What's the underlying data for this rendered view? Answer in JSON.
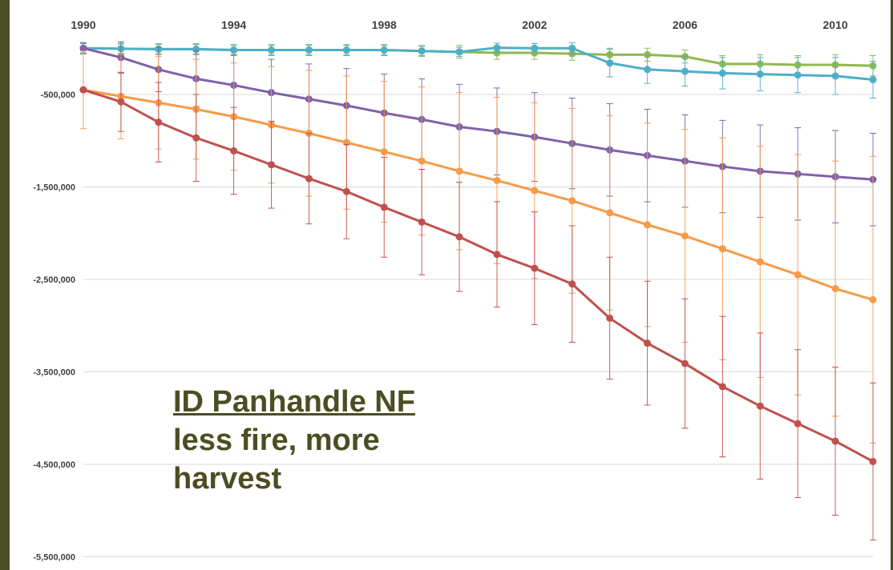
{
  "chart_data": {
    "type": "line",
    "x": [
      1990,
      1991,
      1992,
      1993,
      1994,
      1995,
      1996,
      1997,
      1998,
      1999,
      2000,
      2001,
      2002,
      2003,
      2004,
      2005,
      2006,
      2007,
      2008,
      2009,
      2010,
      2011
    ],
    "xticks": [
      1990,
      1994,
      1998,
      2002,
      2006,
      2010
    ],
    "yticks": [
      -500000,
      -1500000,
      -2500000,
      -3500000,
      -4500000,
      -5500000
    ],
    "ytick_labels": [
      "-500,000",
      "-1,500,000",
      "-2,500,000",
      "-3,500,000",
      "-4,500,000",
      "-5,500,000"
    ],
    "ylim": [
      -5600000,
      80000
    ],
    "xlim": [
      1990,
      2011
    ],
    "grid": "horizontal",
    "x_axis_position": "top",
    "series": [
      {
        "color": "#8dba4f",
        "values": [
          0,
          -5000,
          -10000,
          -10000,
          -20000,
          -20000,
          -20000,
          -20000,
          -20000,
          -30000,
          -40000,
          -50000,
          -50000,
          -60000,
          -70000,
          -70000,
          -90000,
          -170000,
          -170000,
          -180000,
          -180000,
          -190000
        ],
        "errors": [
          60000,
          60000,
          60000,
          60000,
          60000,
          60000,
          60000,
          60000,
          60000,
          60000,
          70000,
          70000,
          70000,
          70000,
          70000,
          70000,
          70000,
          90000,
          100000,
          100000,
          110000,
          110000
        ]
      },
      {
        "color": "#4eafc6",
        "values": [
          0,
          -5000,
          -10000,
          -10000,
          -20000,
          -20000,
          -20000,
          -20000,
          -20000,
          -30000,
          -40000,
          5000,
          0,
          0,
          -160000,
          -230000,
          -250000,
          -270000,
          -280000,
          -290000,
          -300000,
          -340000
        ],
        "errors": [
          50000,
          50000,
          50000,
          50000,
          50000,
          50000,
          50000,
          50000,
          50000,
          50000,
          50000,
          50000,
          50000,
          60000,
          150000,
          150000,
          160000,
          170000,
          180000,
          190000,
          200000,
          200000
        ]
      },
      {
        "color": "#8062a7",
        "values": [
          0,
          -100000,
          -230000,
          -330000,
          -400000,
          -480000,
          -550000,
          -620000,
          -700000,
          -770000,
          -850000,
          -900000,
          -960000,
          -1030000,
          -1100000,
          -1160000,
          -1220000,
          -1280000,
          -1330000,
          -1360000,
          -1390000,
          -1420000
        ],
        "errors": [
          60000,
          170000,
          240000,
          300000,
          330000,
          360000,
          380000,
          400000,
          420000,
          440000,
          460000,
          470000,
          480000,
          490000,
          500000,
          500000,
          500000,
          500000,
          500000,
          500000,
          500000,
          500000
        ]
      },
      {
        "color": "#f79a49",
        "values": [
          -450000,
          -520000,
          -590000,
          -660000,
          -740000,
          -830000,
          -920000,
          -1020000,
          -1120000,
          -1220000,
          -1330000,
          -1430000,
          -1540000,
          -1650000,
          -1780000,
          -1910000,
          -2030000,
          -2170000,
          -2310000,
          -2450000,
          -2600000,
          -2720000
        ],
        "errors": [
          420000,
          460000,
          500000,
          540000,
          580000,
          630000,
          680000,
          720000,
          760000,
          800000,
          850000,
          900000,
          950000,
          1000000,
          1050000,
          1100000,
          1150000,
          1200000,
          1250000,
          1300000,
          1380000,
          1550000
        ]
      },
      {
        "color": "#c0504d",
        "values": [
          -450000,
          -580000,
          -800000,
          -970000,
          -1110000,
          -1260000,
          -1410000,
          -1550000,
          -1720000,
          -1880000,
          -2040000,
          -2230000,
          -2380000,
          -2550000,
          -2920000,
          -3190000,
          -3410000,
          -3660000,
          -3870000,
          -4060000,
          -4250000,
          -4470000
        ],
        "errors": [
          0,
          320000,
          430000,
          470000,
          470000,
          470000,
          490000,
          510000,
          540000,
          570000,
          590000,
          570000,
          610000,
          630000,
          660000,
          670000,
          700000,
          760000,
          790000,
          800000,
          800000,
          850000
        ]
      }
    ]
  },
  "annotation": {
    "title": "ID Panhandle NF",
    "line1": "less  fire, more",
    "line2": "harvest"
  }
}
